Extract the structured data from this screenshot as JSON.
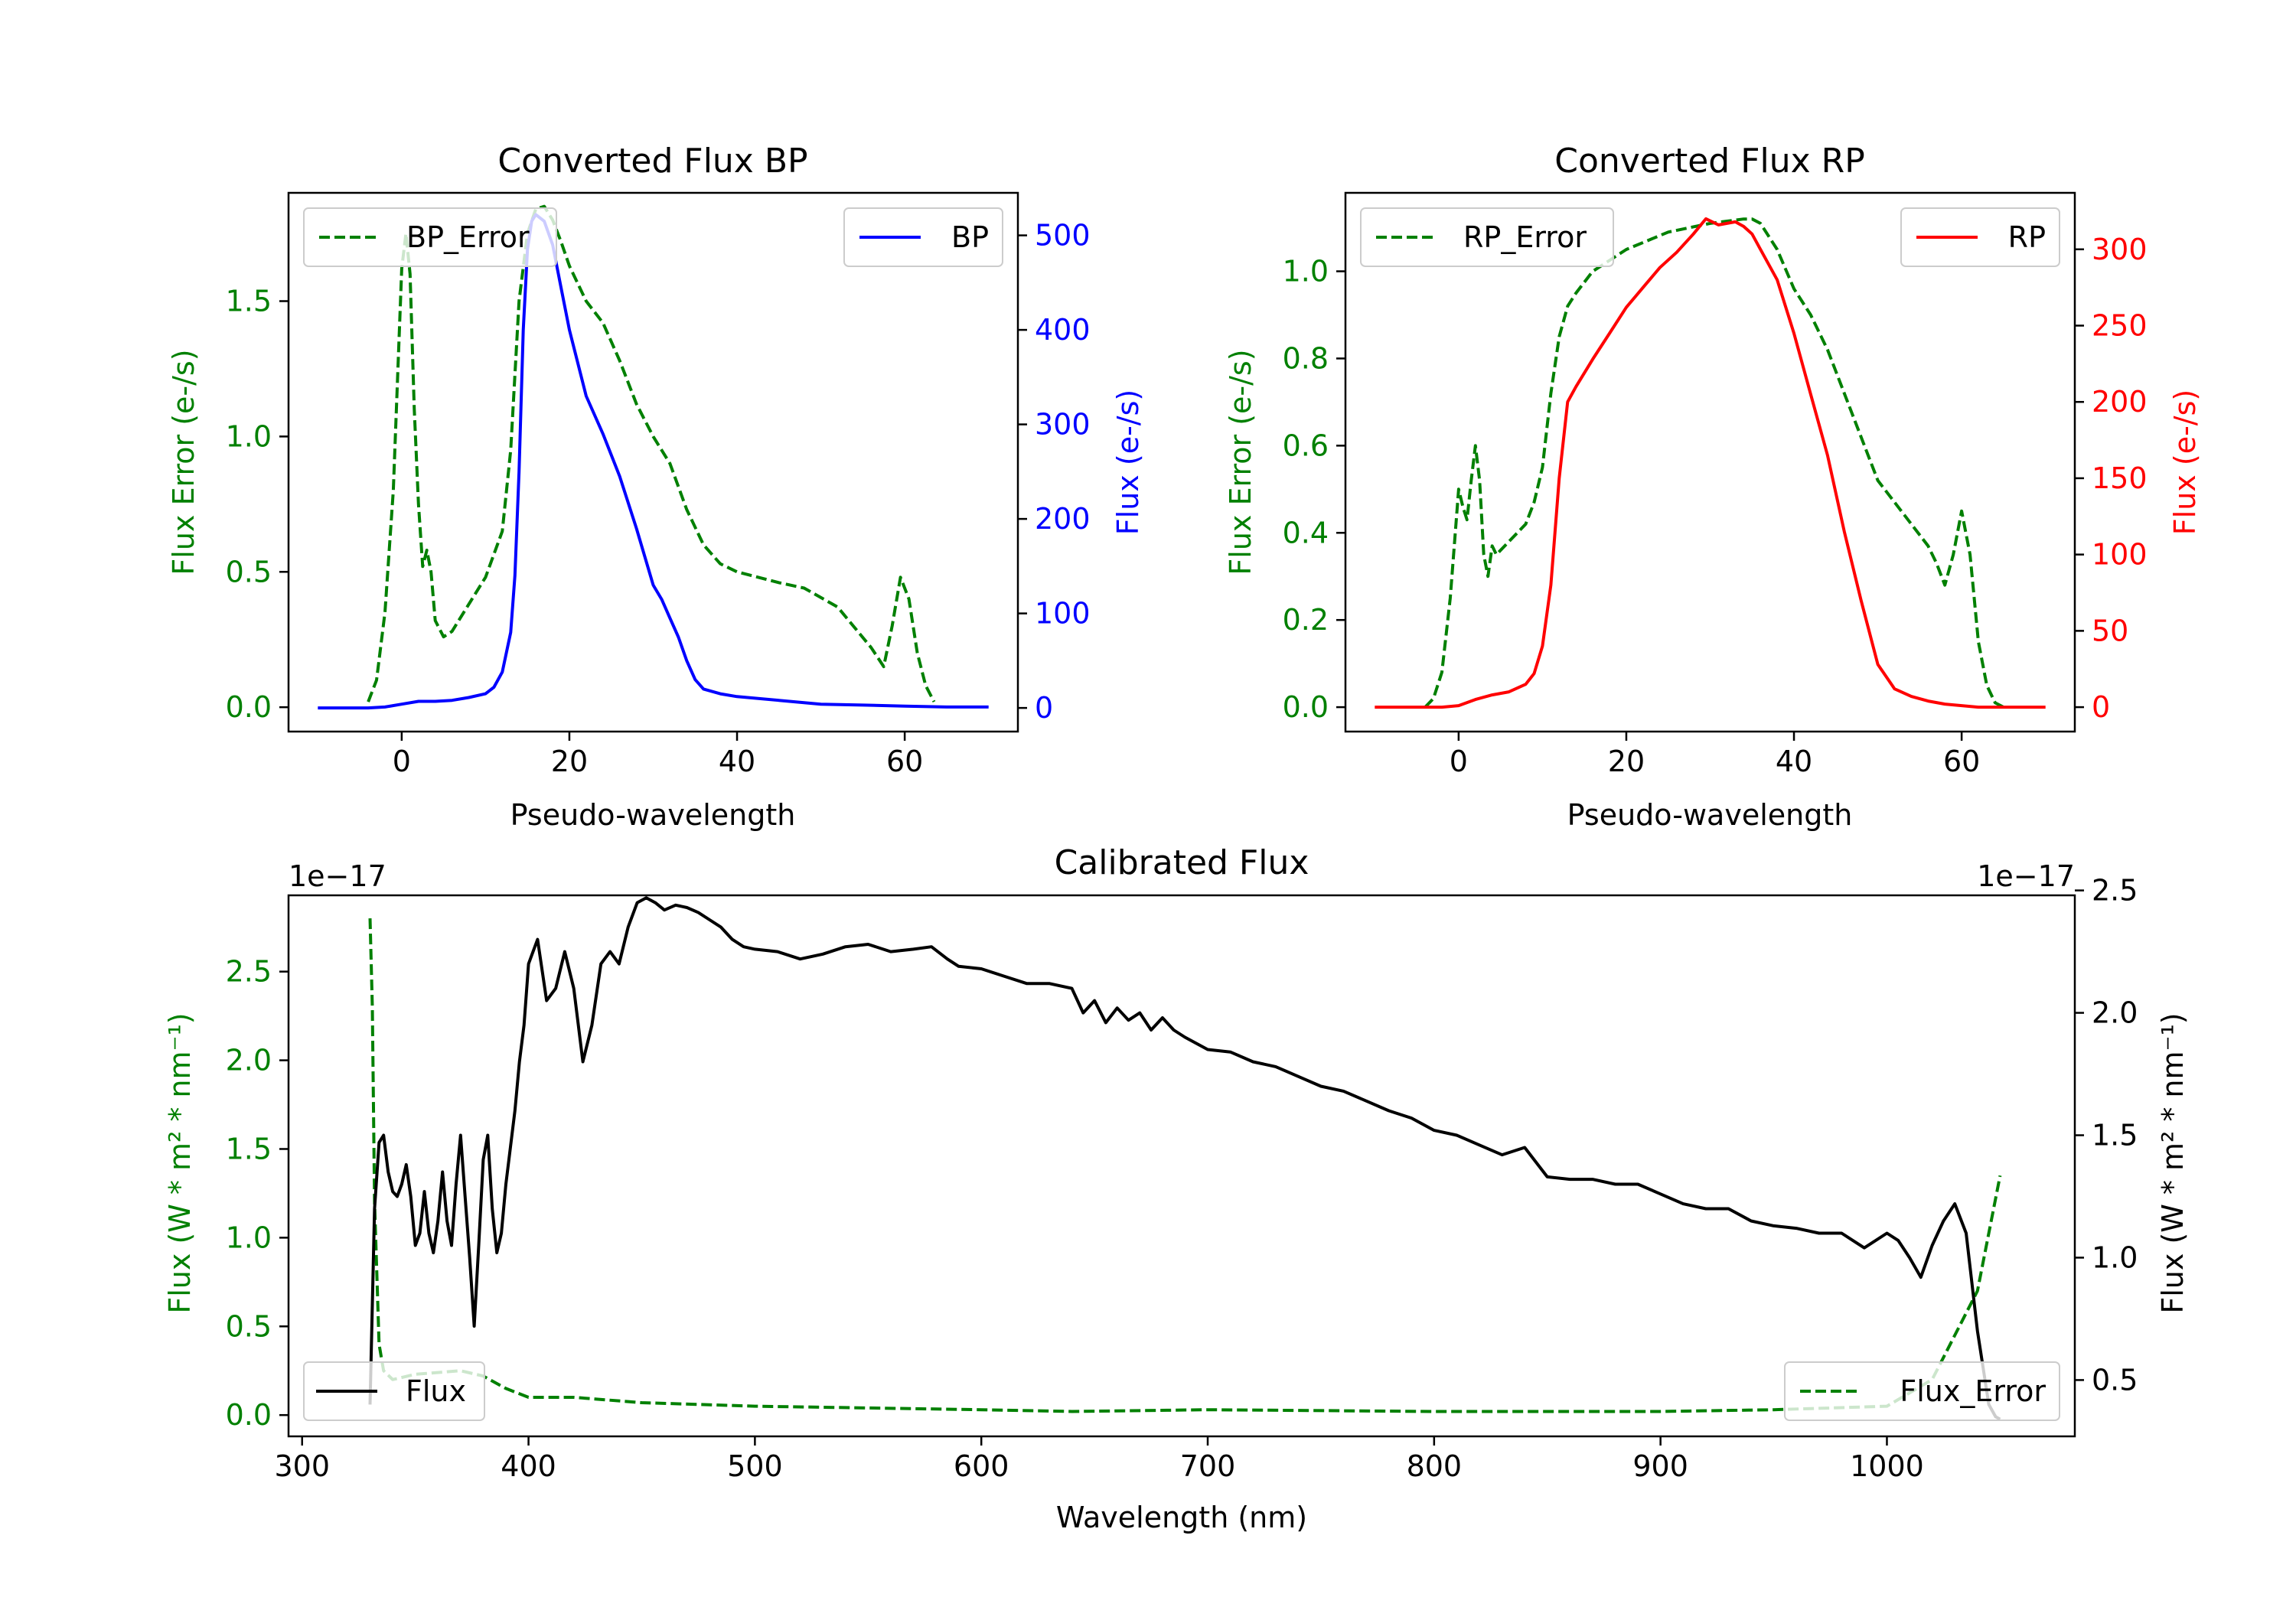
{
  "colors": {
    "error": "#008000",
    "bp": "#0000ff",
    "rp": "#ff0000",
    "flux": "#000000",
    "axis": "#000000"
  },
  "chart_data": [
    {
      "id": "bp",
      "type": "line",
      "title": "Converted Flux BP",
      "xlabel": "Pseudo-wavelength",
      "ylabel_left": "Flux Error (e-/s)",
      "ylabel_right": "Flux (e-/s)",
      "xlim": [
        -13.5,
        73.5
      ],
      "ylim_left": [
        -0.09,
        1.9
      ],
      "ylim_right": [
        -25,
        545
      ],
      "xticks": [
        0,
        20,
        40,
        60
      ],
      "yticks_left": [
        0.0,
        0.5,
        1.0,
        1.5
      ],
      "yticks_right": [
        0,
        100,
        200,
        300,
        400,
        500
      ],
      "legend_left_position": "upper-left",
      "legend_right_position": "upper-right",
      "series": [
        {
          "name": "BP_Error",
          "axis": "left",
          "style": "dashed",
          "color": "#008000",
          "x": [
            -4,
            -3,
            -2,
            -1,
            0,
            0.5,
            1,
            1.5,
            2,
            2.5,
            3,
            3.5,
            4,
            5,
            6,
            8,
            10,
            12,
            13,
            14,
            15,
            16,
            17,
            18,
            19,
            20,
            22,
            24,
            26,
            28,
            30,
            32,
            34,
            36,
            38,
            40,
            45,
            48,
            52,
            56,
            57.5,
            58.5,
            59.5,
            60.5,
            61.5,
            62.5,
            63.5
          ],
          "y": [
            0.02,
            0.1,
            0.35,
            0.8,
            1.62,
            1.75,
            1.6,
            1.1,
            0.75,
            0.52,
            0.58,
            0.5,
            0.32,
            0.26,
            0.28,
            0.38,
            0.48,
            0.65,
            0.95,
            1.5,
            1.75,
            1.84,
            1.85,
            1.8,
            1.72,
            1.63,
            1.5,
            1.42,
            1.28,
            1.12,
            1.0,
            0.9,
            0.73,
            0.6,
            0.53,
            0.5,
            0.46,
            0.44,
            0.37,
            0.22,
            0.15,
            0.3,
            0.48,
            0.4,
            0.2,
            0.08,
            0.02
          ]
        },
        {
          "name": "BP",
          "axis": "right",
          "style": "solid",
          "color": "#0000ff",
          "x": [
            -10,
            -4,
            -2,
            0,
            2,
            4,
            6,
            8,
            10,
            11,
            12,
            13,
            13.5,
            14,
            14.5,
            15,
            15.5,
            16,
            17,
            18,
            19,
            20,
            22,
            24,
            26,
            28,
            30,
            31,
            32,
            33,
            34,
            35,
            36,
            38,
            40,
            45,
            50,
            55,
            60,
            65,
            70
          ],
          "y": [
            0,
            0,
            1,
            4,
            7,
            7,
            8,
            11,
            15,
            22,
            38,
            80,
            140,
            250,
            400,
            485,
            515,
            522,
            515,
            490,
            445,
            400,
            330,
            290,
            245,
            190,
            130,
            115,
            95,
            75,
            50,
            30,
            20,
            15,
            12,
            8,
            4,
            3,
            2,
            1,
            1
          ]
        }
      ]
    },
    {
      "id": "rp",
      "type": "line",
      "title": "Converted Flux RP",
      "xlabel": "Pseudo-wavelength",
      "ylabel_left": "Flux Error (e-/s)",
      "ylabel_right": "Flux (e-/s)",
      "xlim": [
        -13.5,
        73.5
      ],
      "ylim_left": [
        -0.056,
        1.18
      ],
      "ylim_right": [
        -16,
        337
      ],
      "xticks": [
        0,
        20,
        40,
        60
      ],
      "yticks_left": [
        0.0,
        0.2,
        0.4,
        0.6,
        0.8,
        1.0
      ],
      "yticks_right": [
        0,
        50,
        100,
        150,
        200,
        250,
        300
      ],
      "legend_left_position": "upper-left",
      "legend_right_position": "upper-right",
      "series": [
        {
          "name": "RP_Error",
          "axis": "left",
          "style": "dashed",
          "color": "#008000",
          "x": [
            -4,
            -3,
            -2,
            -1,
            0,
            0.5,
            1,
            1.5,
            2,
            2.5,
            3,
            3.5,
            4,
            4.5,
            5,
            6,
            8,
            9,
            10,
            11,
            12,
            13,
            14,
            16,
            20,
            25,
            30,
            34,
            35,
            36,
            38,
            40,
            42,
            44,
            46,
            48,
            50,
            52,
            56,
            57,
            58,
            59,
            60,
            61,
            62,
            63,
            64,
            65
          ],
          "y": [
            0.0,
            0.02,
            0.08,
            0.25,
            0.5,
            0.46,
            0.43,
            0.52,
            0.6,
            0.52,
            0.35,
            0.3,
            0.37,
            0.35,
            0.36,
            0.38,
            0.42,
            0.47,
            0.55,
            0.72,
            0.85,
            0.92,
            0.95,
            1.0,
            1.05,
            1.09,
            1.11,
            1.12,
            1.12,
            1.11,
            1.05,
            0.96,
            0.9,
            0.82,
            0.72,
            0.62,
            0.52,
            0.47,
            0.37,
            0.33,
            0.28,
            0.35,
            0.45,
            0.35,
            0.15,
            0.05,
            0.01,
            0.0
          ]
        },
        {
          "name": "RP",
          "axis": "right",
          "style": "solid",
          "color": "#ff0000",
          "x": [
            -10,
            -2,
            0,
            2,
            4,
            6,
            8,
            9,
            10,
            11,
            12,
            13,
            14,
            16,
            18,
            20,
            22,
            24,
            26,
            28,
            29.5,
            31,
            33,
            34,
            35,
            36,
            38,
            40,
            42,
            44,
            46,
            48,
            50,
            52,
            54,
            56,
            58,
            60,
            62,
            65,
            70
          ],
          "y": [
            0,
            0,
            1,
            5,
            8,
            10,
            15,
            22,
            40,
            80,
            150,
            200,
            210,
            228,
            245,
            262,
            275,
            288,
            298,
            310,
            320,
            316,
            318,
            315,
            310,
            300,
            280,
            245,
            205,
            165,
            115,
            70,
            28,
            12,
            7,
            4,
            2,
            1,
            0,
            0,
            0
          ]
        }
      ]
    },
    {
      "id": "calibrated",
      "type": "line",
      "title": "Calibrated Flux",
      "xlabel": "Wavelength (nm)",
      "ylabel_left": "Flux (W * m² * nm⁻¹)",
      "ylabel_right": "Flux (W * m² * nm⁻¹)",
      "offset_left": "1e−17",
      "offset_right": "1e−17",
      "xlim": [
        294,
        1083
      ],
      "ylim_left": [
        -0.12,
        2.93
      ],
      "ylim_right": [
        0.27,
        2.48
      ],
      "xticks": [
        300,
        400,
        500,
        600,
        700,
        800,
        900,
        1000
      ],
      "yticks_left": [
        0.0,
        0.5,
        1.0,
        1.5,
        2.0,
        2.5
      ],
      "yticks_right": [
        0.5,
        1.0,
        1.5,
        2.0,
        2.5
      ],
      "legend_left_position": "lower-left",
      "legend_right_position": "lower-right",
      "series": [
        {
          "name": "Flux_Error",
          "axis": "left",
          "style": "dashed",
          "color": "#008000",
          "x": [
            330,
            331,
            332,
            334,
            336,
            340,
            350,
            370,
            380,
            390,
            400,
            420,
            450,
            500,
            600,
            640,
            700,
            800,
            900,
            950,
            1000,
            1020,
            1030,
            1040,
            1050
          ],
          "y": [
            2.8,
            2.3,
            1.2,
            0.4,
            0.25,
            0.2,
            0.23,
            0.25,
            0.22,
            0.15,
            0.1,
            0.1,
            0.07,
            0.05,
            0.03,
            0.02,
            0.03,
            0.02,
            0.02,
            0.03,
            0.05,
            0.2,
            0.45,
            0.7,
            1.35
          ]
        },
        {
          "name": "Flux",
          "axis": "right",
          "style": "solid",
          "color": "#000000",
          "x": [
            330,
            332,
            334,
            336,
            338,
            340,
            342,
            344,
            346,
            348,
            350,
            352,
            354,
            356,
            358,
            360,
            362,
            364,
            366,
            368,
            370,
            372,
            374,
            376,
            378,
            380,
            382,
            384,
            386,
            388,
            390,
            392,
            394,
            396,
            398,
            400,
            404,
            408,
            412,
            416,
            420,
            424,
            428,
            432,
            436,
            440,
            444,
            448,
            452,
            456,
            460,
            465,
            470,
            475,
            480,
            485,
            490,
            495,
            500,
            510,
            520,
            530,
            540,
            550,
            560,
            570,
            578,
            585,
            590,
            600,
            610,
            620,
            630,
            640,
            645,
            650,
            655,
            660,
            665,
            670,
            675,
            680,
            685,
            690,
            700,
            710,
            720,
            730,
            740,
            750,
            760,
            770,
            780,
            790,
            800,
            810,
            820,
            830,
            840,
            850,
            860,
            870,
            880,
            890,
            900,
            910,
            920,
            930,
            940,
            950,
            960,
            970,
            980,
            990,
            1000,
            1005,
            1010,
            1015,
            1020,
            1025,
            1030,
            1035,
            1040,
            1045,
            1048,
            1050
          ],
          "y": [
            0.4,
            1.2,
            1.47,
            1.5,
            1.35,
            1.27,
            1.25,
            1.3,
            1.38,
            1.25,
            1.05,
            1.1,
            1.27,
            1.1,
            1.02,
            1.15,
            1.35,
            1.15,
            1.05,
            1.3,
            1.5,
            1.25,
            1.0,
            0.72,
            1.05,
            1.4,
            1.5,
            1.2,
            1.02,
            1.1,
            1.3,
            1.45,
            1.6,
            1.8,
            1.95,
            2.2,
            2.3,
            2.05,
            2.1,
            2.25,
            2.1,
            1.8,
            1.95,
            2.2,
            2.25,
            2.2,
            2.35,
            2.45,
            2.47,
            2.45,
            2.42,
            2.44,
            2.43,
            2.41,
            2.38,
            2.35,
            2.3,
            2.27,
            2.26,
            2.25,
            2.22,
            2.24,
            2.27,
            2.28,
            2.25,
            2.26,
            2.27,
            2.22,
            2.19,
            2.18,
            2.15,
            2.12,
            2.12,
            2.1,
            2.0,
            2.05,
            1.96,
            2.02,
            1.97,
            2.0,
            1.93,
            1.98,
            1.93,
            1.9,
            1.85,
            1.84,
            1.8,
            1.78,
            1.74,
            1.7,
            1.68,
            1.64,
            1.6,
            1.57,
            1.52,
            1.5,
            1.46,
            1.42,
            1.45,
            1.33,
            1.32,
            1.32,
            1.3,
            1.3,
            1.26,
            1.22,
            1.2,
            1.2,
            1.15,
            1.13,
            1.12,
            1.1,
            1.1,
            1.04,
            1.1,
            1.07,
            1.0,
            0.92,
            1.05,
            1.15,
            1.22,
            1.1,
            0.7,
            0.4,
            0.35,
            0.34
          ]
        }
      ]
    }
  ]
}
